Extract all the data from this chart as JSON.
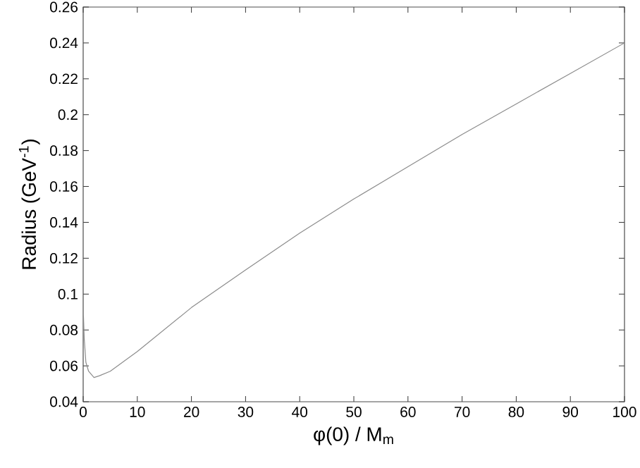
{
  "chart_data": {
    "type": "line",
    "xlabel": "φ(0) / M$_{m}$",
    "ylabel": "Radius  (GeV$^{-1}$)",
    "x": [
      0.05,
      0.2,
      0.5,
      1,
      2,
      3,
      5,
      10,
      20,
      30,
      40,
      50,
      60,
      70,
      80,
      90,
      100
    ],
    "series": [
      {
        "color": "#8c8c8c",
        "values": [
          0.088,
          0.075,
          0.062,
          0.057,
          0.0535,
          0.0545,
          0.057,
          0.068,
          0.0925,
          0.1135,
          0.134,
          0.153,
          0.171,
          0.189,
          0.206,
          0.223,
          0.24
        ]
      }
    ],
    "xlim": [
      0,
      100
    ],
    "ylim": [
      0.04,
      0.26
    ],
    "xticks": [
      0,
      10,
      20,
      30,
      40,
      50,
      60,
      70,
      80,
      90,
      100
    ],
    "yticks": [
      0.04,
      0.06,
      0.08,
      0.1,
      0.12,
      0.14,
      0.16,
      0.18,
      0.2,
      0.22,
      0.24,
      0.26
    ],
    "marker": "none",
    "line_style": "solid"
  }
}
